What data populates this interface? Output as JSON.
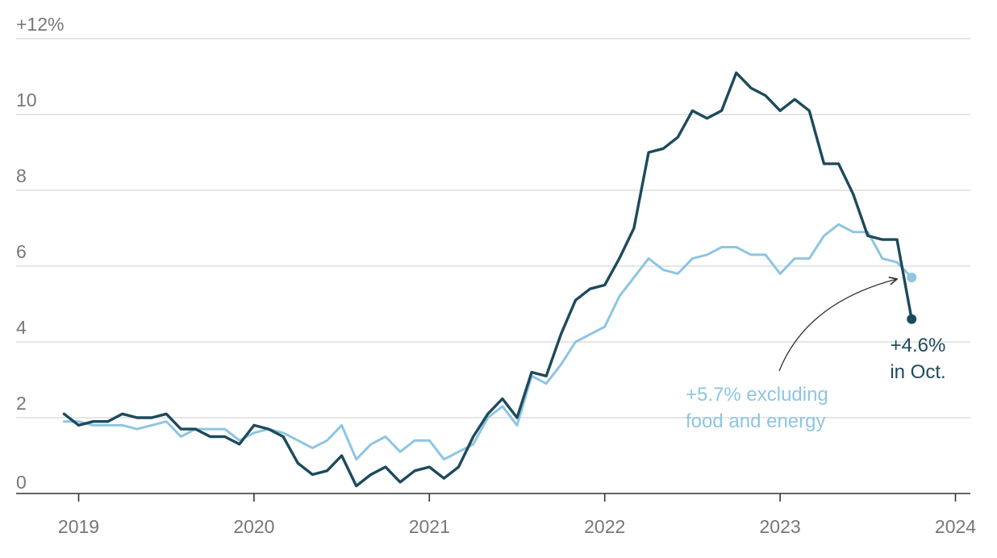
{
  "chart_data": {
    "type": "line",
    "y_tick_labels": [
      "0",
      "2",
      "4",
      "6",
      "8",
      "10",
      "+12%"
    ],
    "x_tick_labels": [
      "2019",
      "2020",
      "2021",
      "2022",
      "2023",
      "2024"
    ],
    "ylim": [
      0,
      12
    ],
    "xlim": [
      "2018-12",
      "2024-01"
    ],
    "grid": true,
    "legend": "inline annotations",
    "series": [
      {
        "color": "#1d4a5c",
        "x": [
          "2018-12",
          "2019-01",
          "2019-02",
          "2019-03",
          "2019-04",
          "2019-05",
          "2019-06",
          "2019-07",
          "2019-08",
          "2019-09",
          "2019-10",
          "2019-11",
          "2019-12",
          "2020-01",
          "2020-02",
          "2020-03",
          "2020-04",
          "2020-05",
          "2020-06",
          "2020-07",
          "2020-08",
          "2020-09",
          "2020-10",
          "2020-11",
          "2020-12",
          "2021-01",
          "2021-02",
          "2021-03",
          "2021-04",
          "2021-05",
          "2021-06",
          "2021-07",
          "2021-08",
          "2021-09",
          "2021-10",
          "2021-11",
          "2021-12",
          "2022-01",
          "2022-02",
          "2022-03",
          "2022-04",
          "2022-05",
          "2022-06",
          "2022-07",
          "2022-08",
          "2022-09",
          "2022-10",
          "2022-11",
          "2022-12",
          "2023-01",
          "2023-02",
          "2023-03",
          "2023-04",
          "2023-05",
          "2023-06",
          "2023-07",
          "2023-08",
          "2023-09",
          "2023-10"
        ],
        "values": [
          2.1,
          1.8,
          1.9,
          1.9,
          2.1,
          2.0,
          2.0,
          2.1,
          1.7,
          1.7,
          1.5,
          1.5,
          1.3,
          1.8,
          1.7,
          1.5,
          0.8,
          0.5,
          0.6,
          1.0,
          0.2,
          0.5,
          0.7,
          0.3,
          0.6,
          0.7,
          0.4,
          0.7,
          1.5,
          2.1,
          2.5,
          2.0,
          3.2,
          3.1,
          4.2,
          5.1,
          5.4,
          5.5,
          6.2,
          7.0,
          9.0,
          9.1,
          9.4,
          10.1,
          9.9,
          10.1,
          11.1,
          10.7,
          10.5,
          10.1,
          10.4,
          10.1,
          8.7,
          8.7,
          7.9,
          6.8,
          6.7,
          6.7,
          4.6
        ]
      },
      {
        "color": "#8ec5e2",
        "x": [
          "2018-12",
          "2019-01",
          "2019-02",
          "2019-03",
          "2019-04",
          "2019-05",
          "2019-06",
          "2019-07",
          "2019-08",
          "2019-09",
          "2019-10",
          "2019-11",
          "2019-12",
          "2020-01",
          "2020-02",
          "2020-03",
          "2020-04",
          "2020-05",
          "2020-06",
          "2020-07",
          "2020-08",
          "2020-09",
          "2020-10",
          "2020-11",
          "2020-12",
          "2021-01",
          "2021-02",
          "2021-03",
          "2021-04",
          "2021-05",
          "2021-06",
          "2021-07",
          "2021-08",
          "2021-09",
          "2021-10",
          "2021-11",
          "2021-12",
          "2022-01",
          "2022-02",
          "2022-03",
          "2022-04",
          "2022-05",
          "2022-06",
          "2022-07",
          "2022-08",
          "2022-09",
          "2022-10",
          "2022-11",
          "2022-12",
          "2023-01",
          "2023-02",
          "2023-03",
          "2023-04",
          "2023-05",
          "2023-06",
          "2023-07",
          "2023-08",
          "2023-09",
          "2023-10"
        ],
        "values": [
          1.9,
          1.9,
          1.8,
          1.8,
          1.8,
          1.7,
          1.8,
          1.9,
          1.5,
          1.7,
          1.7,
          1.7,
          1.4,
          1.6,
          1.7,
          1.6,
          1.4,
          1.2,
          1.4,
          1.8,
          0.9,
          1.3,
          1.5,
          1.1,
          1.4,
          1.4,
          0.9,
          1.1,
          1.3,
          2.0,
          2.3,
          1.8,
          3.1,
          2.9,
          3.4,
          4.0,
          4.2,
          4.4,
          5.2,
          5.7,
          6.2,
          5.9,
          5.8,
          6.2,
          6.3,
          6.5,
          6.5,
          6.3,
          6.3,
          5.8,
          6.2,
          6.2,
          6.8,
          7.1,
          6.9,
          6.9,
          6.2,
          6.1,
          5.7
        ]
      }
    ],
    "annotations": {
      "dark_line1": "+4.6%",
      "dark_line2": "in Oct.",
      "light_line1": "+5.7% excluding",
      "light_line2": "food and energy"
    }
  }
}
